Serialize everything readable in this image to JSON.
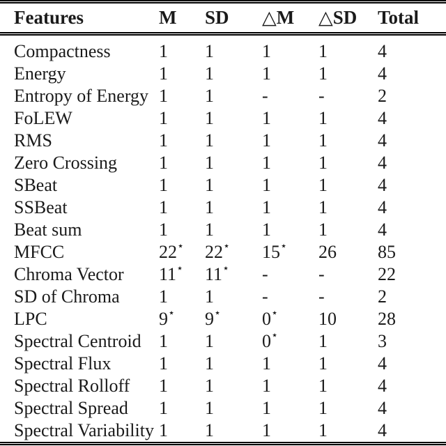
{
  "table": {
    "headers": [
      "Features",
      "M",
      "SD",
      "△M",
      "△SD",
      "Total"
    ],
    "rows": [
      [
        "Compactness",
        "1",
        "1",
        "1",
        "1",
        "4"
      ],
      [
        "Energy",
        "1",
        "1",
        "1",
        "1",
        "4"
      ],
      [
        "Entropy of Energy",
        "1",
        "1",
        "-",
        "-",
        "2"
      ],
      [
        "FoLEW",
        "1",
        "1",
        "1",
        "1",
        "4"
      ],
      [
        "RMS",
        "1",
        "1",
        "1",
        "1",
        "4"
      ],
      [
        "Zero Crossing",
        "1",
        "1",
        "1",
        "1",
        "4"
      ],
      [
        "SBeat",
        "1",
        "1",
        "1",
        "1",
        "4"
      ],
      [
        "SSBeat",
        "1",
        "1",
        "1",
        "1",
        "4"
      ],
      [
        "Beat sum",
        "1",
        "1",
        "1",
        "1",
        "4"
      ],
      [
        "MFCC",
        "22⋆",
        "22⋆",
        "15⋆",
        "26",
        "85"
      ],
      [
        "Chroma Vector",
        "11⋆",
        "11⋆",
        "-",
        "-",
        "22"
      ],
      [
        "SD of Chroma",
        "1",
        "1",
        "-",
        "-",
        "2"
      ],
      [
        "LPC",
        "9⋆",
        "9⋆",
        "0⋆",
        "10",
        "28"
      ],
      [
        "Spectral Centroid",
        "1",
        "1",
        "0⋆",
        "1",
        "3"
      ],
      [
        "Spectral Flux",
        "1",
        "1",
        "1",
        "1",
        "4"
      ],
      [
        "Spectral Rolloff",
        "1",
        "1",
        "1",
        "1",
        "4"
      ],
      [
        "Spectral Spread",
        "1",
        "1",
        "1",
        "1",
        "4"
      ],
      [
        "Spectral Variability",
        "1",
        "1",
        "1",
        "1",
        "4"
      ]
    ],
    "star_symbol": "⋆"
  },
  "colors": {
    "text": "#1a1a1a",
    "rule": "#000000",
    "background": "#ffffff"
  }
}
